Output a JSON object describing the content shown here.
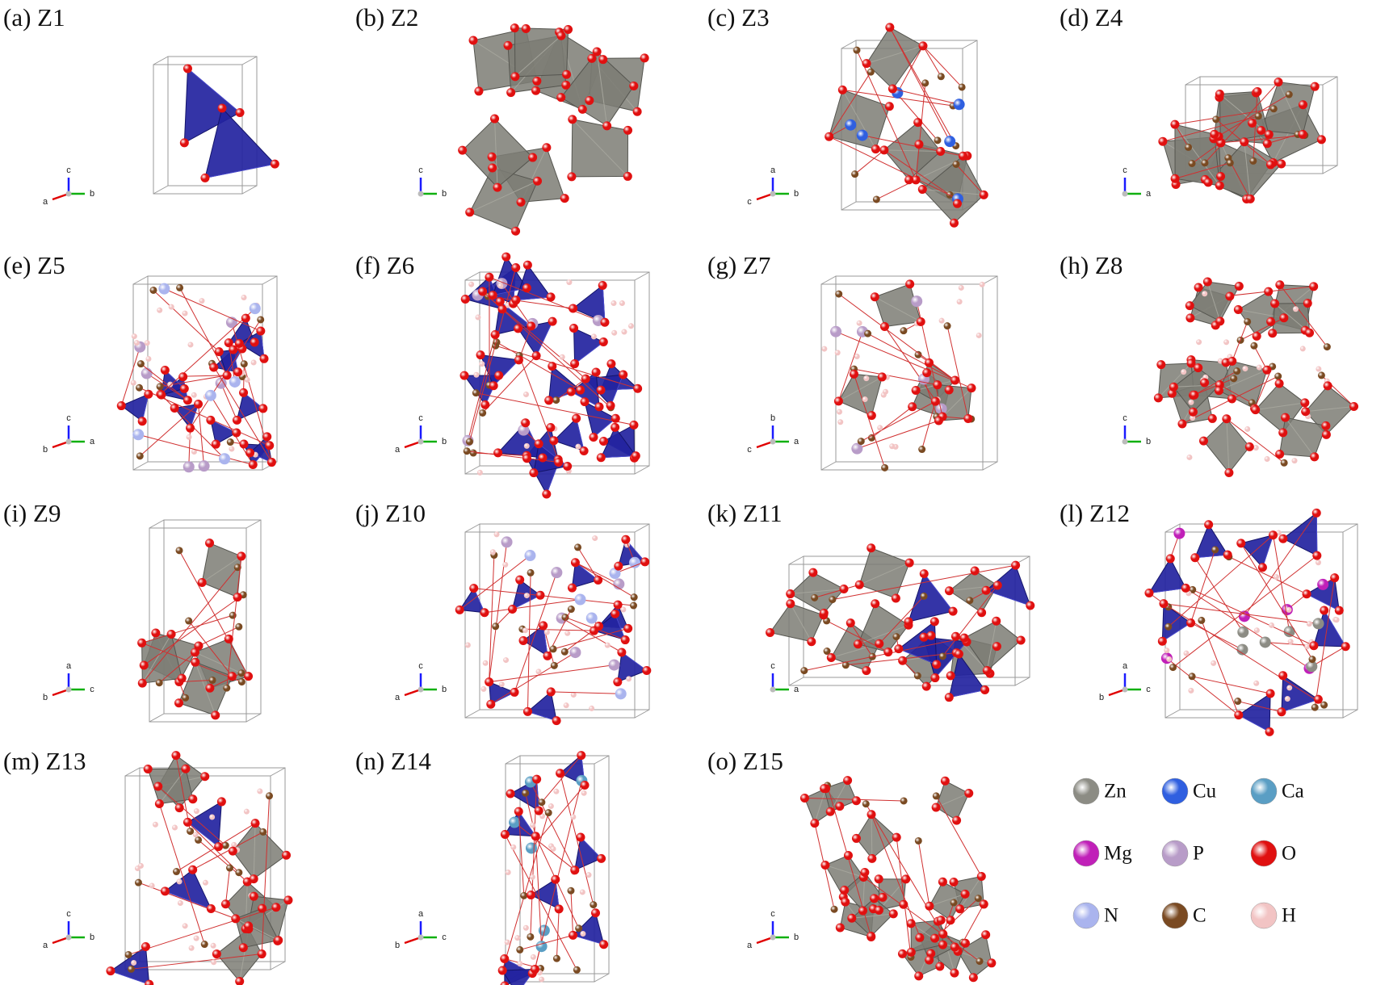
{
  "panels": [
    {
      "label": "(a) Z1",
      "axes": [
        "c",
        "a",
        "b"
      ]
    },
    {
      "label": "(b) Z2",
      "axes": [
        "c",
        "b"
      ]
    },
    {
      "label": "(c) Z3",
      "axes": [
        "a",
        "c",
        "b"
      ]
    },
    {
      "label": "(d) Z4",
      "axes": [
        "c",
        "a"
      ]
    },
    {
      "label": "(e) Z5",
      "axes": [
        "c",
        "b",
        "a"
      ]
    },
    {
      "label": "(f) Z6",
      "axes": [
        "c",
        "a",
        "b"
      ]
    },
    {
      "label": "(g) Z7",
      "axes": [
        "b",
        "c",
        "a"
      ]
    },
    {
      "label": "(h) Z8",
      "axes": [
        "c",
        "b"
      ]
    },
    {
      "label": "(i) Z9",
      "axes": [
        "a",
        "b",
        "c"
      ]
    },
    {
      "label": "(j) Z10",
      "axes": [
        "c",
        "a",
        "b"
      ]
    },
    {
      "label": "(k) Z11",
      "axes": [
        "c",
        "a"
      ]
    },
    {
      "label": "(l) Z12",
      "axes": [
        "a",
        "b",
        "c"
      ]
    },
    {
      "label": "(m) Z13",
      "axes": [
        "c",
        "a",
        "b"
      ]
    },
    {
      "label": "(n) Z14",
      "axes": [
        "a",
        "b",
        "c"
      ]
    },
    {
      "label": "(o) Z15",
      "axes": [
        "c",
        "a",
        "b"
      ]
    }
  ],
  "legend": [
    {
      "symbol": "Zn",
      "color": "#8c8c84"
    },
    {
      "symbol": "Cu",
      "color": "#2f5fe0"
    },
    {
      "symbol": "Ca",
      "color": "#5a9ec4"
    },
    {
      "symbol": "Mg",
      "color": "#c020b8"
    },
    {
      "symbol": "P",
      "color": "#b89cc8"
    },
    {
      "symbol": "O",
      "color": "#e01010"
    },
    {
      "symbol": "N",
      "color": "#aab4ee"
    },
    {
      "symbol": "C",
      "color": "#7a4a22"
    },
    {
      "symbol": "H",
      "color": "#f2c4c4"
    }
  ]
}
